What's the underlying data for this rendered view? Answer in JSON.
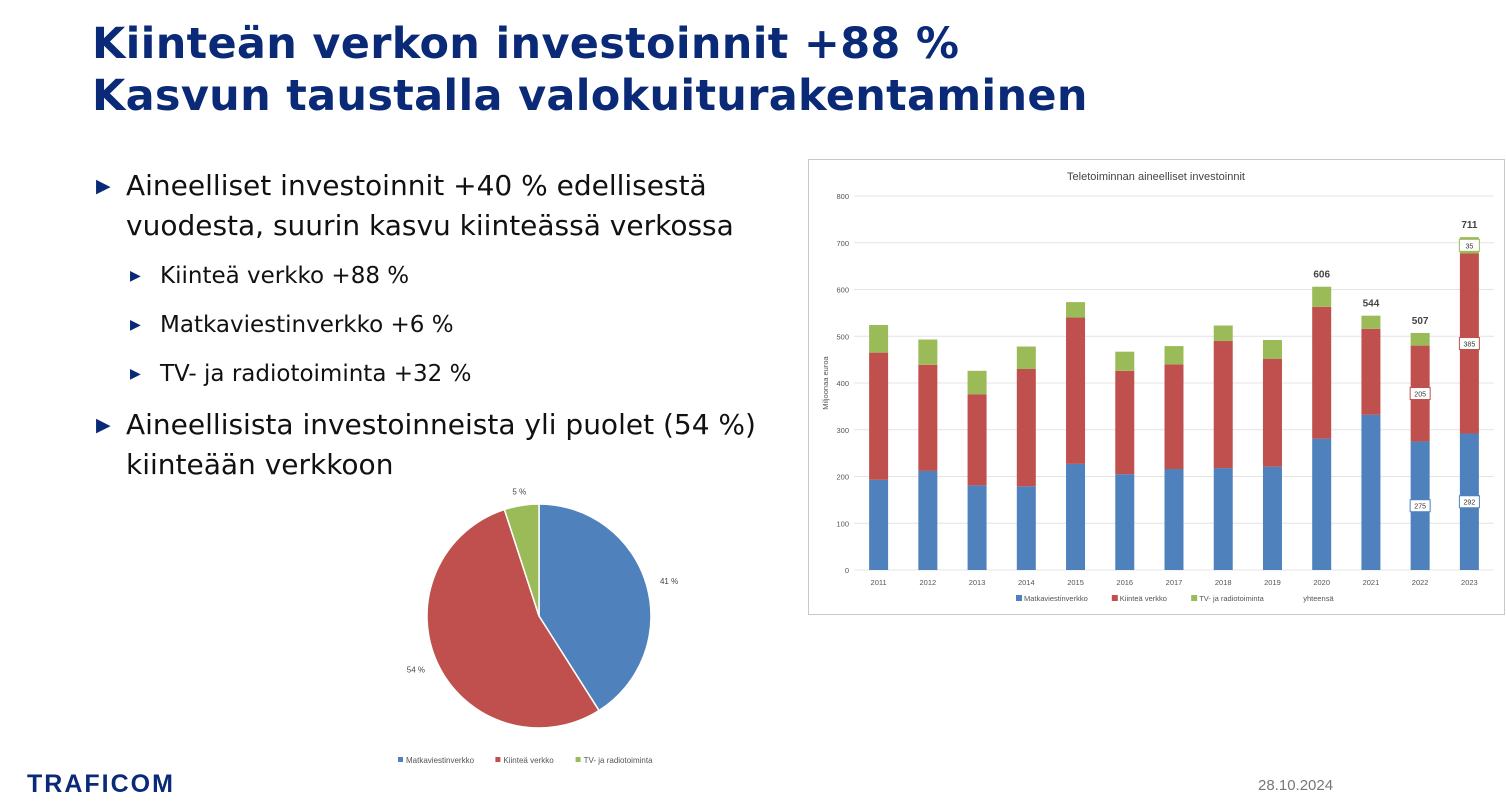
{
  "slide": {
    "title_line1": "Kiinteän verkon investoinnit +88 %",
    "title_line2": "Kasvun taustalla valokuiturakentaminen",
    "bullets": [
      "Aineelliset investoinnit +40 % edellisestä vuodesta, suurin kasvu kiinteässä verkossa",
      "Kiinteä verkko +88 %",
      "Matkaviestinverkko +6 %",
      "TV- ja radiotoiminta +32 %",
      "Aineellisista investoinneista yli puolet (54 %) kiinteään verkkoon"
    ],
    "logo_text": "TRAFICOM",
    "date": "28.10.2024"
  },
  "colors": {
    "mobile": "#4f81bd",
    "fixed": "#c0504d",
    "tv": "#9bbb59",
    "title": "#0a2a78"
  },
  "chart_data": [
    {
      "type": "bar",
      "stacked": true,
      "title": "Teletoiminnan aineelliset investoinnit",
      "ylabel": "Miljoonaa euroa",
      "xlabel": "",
      "ylim": [
        0,
        800
      ],
      "yticks": [
        0,
        100,
        200,
        300,
        400,
        500,
        600,
        700,
        800
      ],
      "grid": true,
      "legend_position": "bottom",
      "categories": [
        "2011",
        "2012",
        "2013",
        "2014",
        "2015",
        "2016",
        "2017",
        "2018",
        "2019",
        "2020",
        "2021",
        "2022",
        "2023"
      ],
      "series": [
        {
          "name": "Matkaviestinverkko",
          "values": [
            193,
            212,
            181,
            179,
            227,
            205,
            216,
            218,
            221,
            281,
            332,
            275,
            292
          ]
        },
        {
          "name": "Kiinteä verkko",
          "values": [
            272,
            227,
            195,
            251,
            313,
            221,
            224,
            272,
            231,
            282,
            184,
            205,
            385
          ]
        },
        {
          "name": "TV- ja radiotoiminta",
          "values": [
            59,
            54,
            50,
            48,
            33,
            41,
            39,
            33,
            40,
            43,
            28,
            27,
            35
          ]
        }
      ],
      "totals_series_name": "yhteensä",
      "total_labels": [
        {
          "category": "2020",
          "value": "606"
        },
        {
          "category": "2021",
          "value": "544"
        },
        {
          "category": "2022",
          "value": "507"
        },
        {
          "category": "2023",
          "value": "711"
        }
      ],
      "segment_labels": [
        {
          "category": "2022",
          "series": "Matkaviestinverkko",
          "value": "275"
        },
        {
          "category": "2022",
          "series": "Kiinteä verkko",
          "value": "205"
        },
        {
          "category": "2023",
          "series": "Matkaviestinverkko",
          "value": "292"
        },
        {
          "category": "2023",
          "series": "Kiinteä verkko",
          "value": "385"
        },
        {
          "category": "2023",
          "series": "TV- ja radiotoiminta",
          "value": "35"
        }
      ]
    },
    {
      "type": "pie",
      "labels": [
        "Matkaviestinverkko",
        "Kiinteä verkko",
        "TV- ja radiotoiminta"
      ],
      "values": [
        41,
        54,
        5
      ],
      "value_labels": [
        "41 %",
        "54 %",
        "5 %"
      ],
      "legend_position": "bottom"
    }
  ]
}
